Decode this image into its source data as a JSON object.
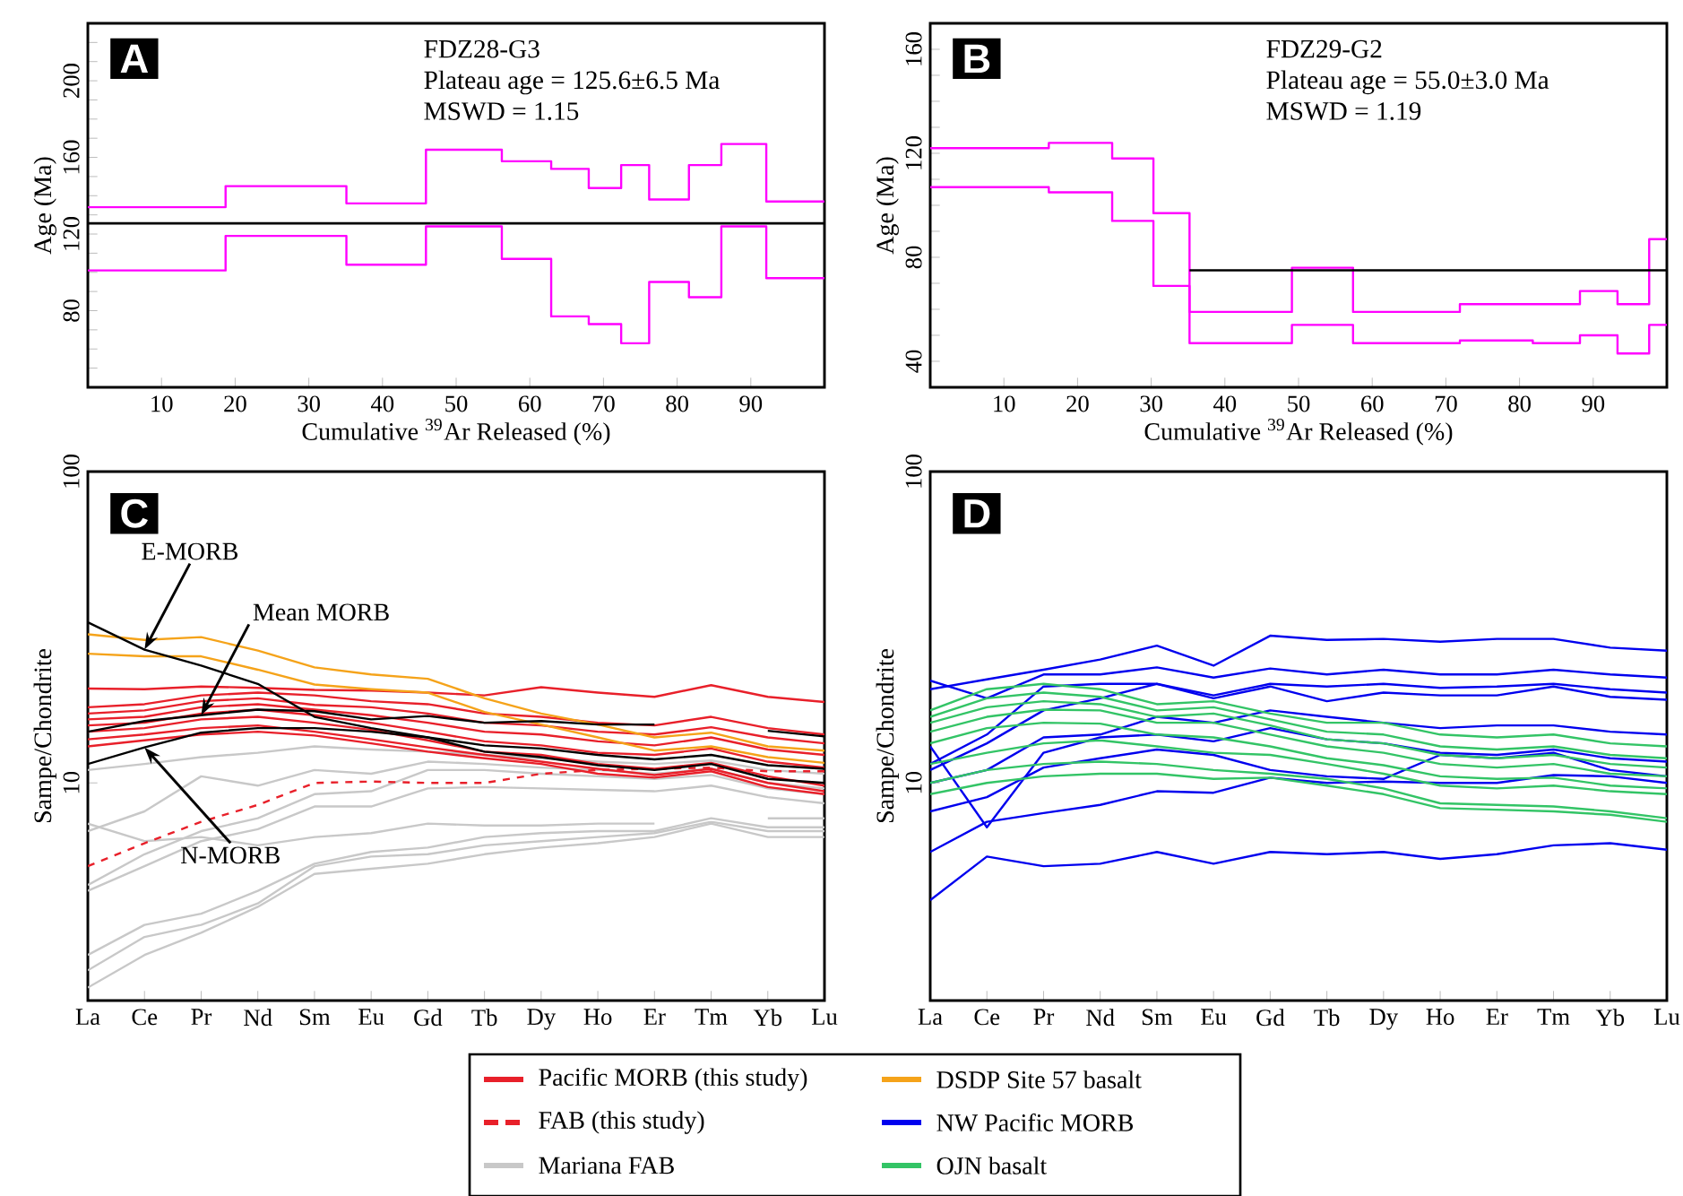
{
  "chart_data": [
    {
      "type": "step",
      "title": "A",
      "xlabel": "Cumulative $^{39}$Ar Released (%)",
      "ylabel": "Age (Ma)",
      "xlim": [
        0,
        100
      ],
      "xticks": [
        10,
        20,
        30,
        40,
        50,
        60,
        70,
        80,
        90
      ],
      "ylim": [
        40,
        230
      ],
      "yticks": [
        {
          "value": 50,
          "label": null
        },
        {
          "value": 60,
          "label": null
        },
        {
          "value": 70,
          "label": null
        },
        80,
        {
          "value": 90,
          "label": null
        },
        {
          "value": 100,
          "label": null
        },
        {
          "value": 110,
          "label": null
        },
        120,
        {
          "value": 130,
          "label": null
        },
        {
          "value": 140,
          "label": null
        },
        {
          "value": 150,
          "label": null
        },
        160,
        {
          "value": 170,
          "label": null
        },
        {
          "value": 180,
          "label": null
        },
        {
          "value": 190,
          "label": null
        },
        200,
        {
          "value": 210,
          "label": null
        },
        {
          "value": 220,
          "label": null
        }
      ],
      "annotations": [
        "FDZ28-G3",
        "Plateau age = 125.6±6.5 Ma",
        "MSWD = 1.15"
      ],
      "ref_lines": [
        {
          "axis": "y",
          "value": 125.6,
          "color": "#000000"
        }
      ],
      "series": [
        {
          "color": "#ff00ff",
          "x": [
            0,
            18.7,
            35.1,
            45.9,
            56.2,
            62.9,
            68.0,
            72.4,
            76.2,
            81.6,
            86.0,
            92.1,
            100
          ],
          "values": [
            134,
            145,
            136,
            164,
            158,
            154,
            144,
            156,
            138,
            156,
            167,
            137,
            137
          ]
        },
        {
          "color": "#ff00ff",
          "x": [
            0,
            18.7,
            35.1,
            45.9,
            56.2,
            62.9,
            68.0,
            72.4,
            76.2,
            81.6,
            86.0,
            92.1,
            100
          ],
          "values": [
            101,
            119,
            104,
            124,
            107,
            77,
            73,
            63,
            95,
            87,
            124,
            97,
            97
          ]
        }
      ]
    },
    {
      "type": "step",
      "title": "B",
      "xlabel": "Cumulative $^{39}$Ar Released (%)",
      "ylabel": "Age (Ma)",
      "xlim": [
        0,
        100
      ],
      "xticks": [
        10,
        20,
        30,
        40,
        50,
        60,
        70,
        80,
        90
      ],
      "ylim": [
        30,
        170
      ],
      "yticks": [
        40,
        {
          "value": 50,
          "label": null
        },
        {
          "value": 60,
          "label": null
        },
        {
          "value": 70,
          "label": null
        },
        80,
        {
          "value": 90,
          "label": null
        },
        {
          "value": 100,
          "label": null
        },
        {
          "value": 110,
          "label": null
        },
        120,
        {
          "value": 130,
          "label": null
        },
        {
          "value": 140,
          "label": null
        },
        {
          "value": 150,
          "label": null
        },
        160
      ],
      "annotations": [
        "FDZ29-G2",
        "Plateau age = 55.0±3.0 Ma",
        "MSWD = 1.19"
      ],
      "series": [
        {
          "color": "#ff00ff",
          "x": [
            0,
            16.1,
            24.7,
            30.3,
            35.2,
            49.1,
            57.4,
            71.9,
            81.8,
            88.2,
            93.3,
            97.6,
            100
          ],
          "values": [
            122,
            124,
            118,
            97,
            59,
            76,
            59,
            62,
            62,
            67,
            62,
            87,
            87
          ]
        },
        {
          "color": "#ff00ff",
          "x": [
            0,
            16.1,
            24.7,
            30.3,
            35.2,
            49.1,
            57.4,
            71.9,
            81.8,
            88.2,
            93.3,
            97.6,
            100
          ],
          "values": [
            107,
            105,
            94,
            69,
            47,
            54,
            47,
            48,
            47,
            50,
            43,
            54,
            54
          ]
        },
        {
          "type": "line",
          "color": "#000000",
          "x": [
            35.2,
            100
          ],
          "values": [
            75,
            75
          ]
        }
      ]
    },
    {
      "type": "line",
      "title": "C",
      "ylabel": "Sampe/Chondrite",
      "log": "y",
      "ylim": [
        2,
        100
      ],
      "yticks": [
        10,
        100
      ],
      "legend": "bottom",
      "categories": [
        "La",
        "Ce",
        "Pr",
        "Nd",
        "Sm",
        "Eu",
        "Gd",
        "Tb",
        "Dy",
        "Ho",
        "Er",
        "Tm",
        "Yb",
        "Lu"
      ],
      "annotations": [
        {
          "text": "E-MORB",
          "x": "Ce",
          "y": 26.8
        },
        {
          "text": "Mean MORB",
          "x": "Pr",
          "y": 16.5
        },
        {
          "text": "N-MORB",
          "x": "Ce",
          "y": 13.0
        }
      ],
      "series": [
        {
          "color": "#c8c8c8",
          "values": [
            11.0,
            11.5,
            12.1,
            12.5,
            13.1,
            12.8,
            12.6,
            12.3,
            12.0,
            11.7,
            11.5,
            11.8,
            11.0,
            10.7
          ]
        },
        {
          "color": "#c8c8c8",
          "values": [
            7.0,
            8.1,
            10.5,
            9.8,
            11.0,
            10.7,
            11.7,
            11.5,
            11.2,
            11.0,
            10.7,
            11.1,
            10.0,
            9.6
          ]
        },
        {
          "color": "#c8c8c8",
          "values": [
            4.7,
            5.9,
            7.0,
            7.7,
            9.2,
            9.4,
            11.0,
            11.0,
            10.7,
            10.5,
            10.3,
            10.6,
            9.6,
            9.2
          ]
        },
        {
          "color": "#c8c8c8",
          "values": [
            4.5,
            5.4,
            6.5,
            7.1,
            8.4,
            8.4,
            9.6,
            9.7,
            9.6,
            9.5,
            9.4,
            9.8,
            9.0,
            8.6
          ]
        },
        {
          "color": "#c8c8c8",
          "values": [
            7.4,
            6.5,
            6.7,
            6.3,
            6.7,
            6.9,
            7.4,
            7.3,
            7.3,
            7.4,
            7.4,
            null,
            7.7,
            7.7
          ]
        },
        {
          "color": "#c8c8c8",
          "values": [
            2.8,
            3.5,
            3.8,
            4.5,
            5.5,
            6.0,
            6.2,
            6.7,
            6.9,
            7.0,
            7.0,
            7.7,
            7.2,
            7.2
          ]
        },
        {
          "color": "#c8c8c8",
          "values": [
            2.5,
            3.2,
            3.5,
            4.1,
            5.4,
            5.8,
            5.9,
            6.3,
            6.5,
            6.7,
            6.9,
            7.5,
            7.0,
            7.0
          ]
        },
        {
          "name": "Pacific MORB (this study)",
          "color": "#e8202a",
          "values": [
            20.1,
            20.0,
            20.4,
            20.2,
            19.9,
            19.8,
            19.5,
            19.1,
            20.3,
            19.5,
            18.9,
            20.6,
            18.9,
            18.2
          ]
        },
        {
          "color": "#e8202a",
          "values": [
            17.5,
            17.9,
            19.1,
            19.5,
            19.1,
            18.3,
            17.9,
            16.7,
            16.3,
            15.6,
            15.3,
            16.3,
            15.0,
            14.3
          ]
        },
        {
          "color": "#e8202a",
          "values": [
            16.7,
            17.1,
            18.3,
            18.7,
            17.8,
            17.5,
            16.7,
            15.6,
            15.3,
            14.6,
            14.3,
            15.1,
            14.0,
            13.4
          ]
        },
        {
          "color": "#e8202a",
          "values": [
            16.0,
            16.3,
            17.5,
            17.9,
            17.2,
            16.5,
            15.6,
            14.6,
            14.3,
            13.6,
            13.2,
            14.0,
            12.8,
            12.3
          ]
        },
        {
          "color": "#e8202a",
          "values": [
            15.3,
            15.6,
            16.7,
            17.2,
            16.5,
            15.6,
            14.6,
            13.6,
            13.2,
            12.5,
            12.3,
            12.9,
            11.7,
            11.2
          ]
        },
        {
          "color": "#e8202a",
          "values": [
            14.6,
            15.0,
            16.0,
            16.3,
            15.6,
            14.8,
            13.7,
            12.6,
            12.3,
            11.5,
            11.1,
            11.6,
            10.5,
            9.8
          ]
        },
        {
          "color": "#e8202a",
          "values": [
            13.8,
            14.3,
            15.0,
            15.3,
            14.6,
            13.8,
            13.0,
            12.3,
            11.7,
            11.1,
            10.6,
            11.1,
            10.0,
            9.4
          ]
        },
        {
          "color": "#e8202a",
          "values": [
            13.1,
            13.7,
            14.3,
            14.6,
            14.2,
            13.4,
            12.6,
            12.0,
            11.5,
            10.7,
            10.4,
            10.9,
            9.7,
            9.2
          ]
        },
        {
          "name": "FAB (this study)",
          "color": "#e8202a",
          "line_style": "dashed",
          "values": [
            5.4,
            6.4,
            7.5,
            8.5,
            10.0,
            10.1,
            10.0,
            10.0,
            10.7,
            11.0,
            11.1,
            11.2,
            10.9,
            10.9
          ]
        },
        {
          "name": "Mariana FAB",
          "color": "#c8c8c8",
          "values": [
            2.2,
            2.8,
            3.3,
            4.0,
            5.1,
            5.3,
            5.5,
            5.9,
            6.2,
            6.4,
            6.7,
            7.4,
            6.7,
            6.7
          ]
        },
        {
          "name": "DSDP Site 57 basalt",
          "color": "#f5a31a",
          "values": [
            30.0,
            28.8,
            29.4,
            26.6,
            23.5,
            22.3,
            21.6,
            18.7,
            16.7,
            15.4,
            14.0,
            14.5,
            13.1,
            12.7
          ]
        },
        {
          "color": "#f5a31a",
          "values": [
            26.0,
            25.5,
            25.5,
            23.1,
            20.7,
            20.0,
            19.5,
            16.9,
            15.4,
            14.0,
            12.7,
            13.1,
            12.1,
            11.6
          ]
        },
        {
          "color": "#000000",
          "values": [
            32.8,
            26.8,
            23.8,
            20.8,
            16.3,
            15.0,
            14.0,
            12.6,
            12.1,
            11.4,
            11.0,
            11.5,
            10.3,
            10.0
          ]
        },
        {
          "color": "#000000",
          "values": [
            14.6,
            15.8,
            16.5,
            17.2,
            17.0,
            16.0,
            16.4,
            15.6,
            15.8,
            15.4,
            15.4,
            null,
            14.7,
            14.1
          ]
        },
        {
          "color": "#000000",
          "values": [
            11.5,
            13.0,
            14.5,
            15.0,
            15.0,
            14.6,
            14.0,
            13.2,
            12.9,
            12.3,
            11.9,
            12.3,
            11.4,
            11.1
          ]
        }
      ]
    },
    {
      "type": "line",
      "title": "D",
      "ylabel": "Sampe/Chondrite",
      "log": "y",
      "ylim": [
        2,
        100
      ],
      "yticks": [
        10,
        100
      ],
      "legend": "bottom",
      "categories": [
        "La",
        "Ce",
        "Pr",
        "Nd",
        "Sm",
        "Eu",
        "Gd",
        "Tb",
        "Dy",
        "Ho",
        "Er",
        "Tm",
        "Yb",
        "Lu"
      ],
      "series": [
        {
          "name": "NW Pacific MORB",
          "color": "#0000ee",
          "values": [
            20.0,
            21.5,
            23.1,
            24.9,
            27.6,
            23.8,
            29.7,
            28.8,
            29.0,
            28.4,
            29.0,
            29.0,
            27.2,
            26.6
          ]
        },
        {
          "color": "#0000ee",
          "values": [
            21.3,
            18.7,
            22.3,
            22.3,
            23.5,
            21.8,
            23.3,
            22.3,
            23.1,
            22.3,
            22.3,
            23.1,
            22.3,
            21.8
          ]
        },
        {
          "color": "#0000ee",
          "values": [
            11.5,
            14.3,
            20.4,
            20.8,
            20.8,
            19.1,
            20.8,
            20.4,
            20.8,
            20.2,
            20.4,
            20.8,
            20.0,
            19.5
          ]
        },
        {
          "color": "#0000ee",
          "values": [
            11.0,
            13.4,
            17.1,
            18.7,
            20.8,
            18.7,
            20.4,
            18.3,
            19.5,
            19.1,
            19.1,
            20.4,
            18.9,
            18.5
          ]
        },
        {
          "color": "#0000ee",
          "values": [
            10.0,
            11.0,
            14.0,
            14.3,
            16.3,
            15.6,
            17.1,
            16.3,
            15.6,
            15.0,
            15.3,
            15.3,
            14.6,
            14.3
          ]
        },
        {
          "color": "#0000ee",
          "values": [
            13.1,
            7.2,
            12.5,
            14.0,
            14.3,
            13.6,
            15.0,
            13.8,
            13.4,
            12.5,
            12.3,
            12.8,
            12.0,
            11.7
          ]
        },
        {
          "color": "#0000ee",
          "values": [
            8.1,
            9.0,
            11.2,
            12.0,
            12.8,
            12.3,
            11.0,
            10.5,
            10.3,
            12.3,
            12.0,
            12.5,
            11.0,
            10.5
          ]
        },
        {
          "color": "#0000ee",
          "values": [
            6.0,
            7.5,
            8.0,
            8.5,
            9.4,
            9.3,
            10.4,
            10.0,
            10.1,
            10.0,
            10.0,
            10.6,
            10.5,
            10.0
          ]
        },
        {
          "color": "#0000ee",
          "values": [
            4.2,
            5.8,
            5.4,
            5.5,
            6.0,
            5.5,
            6.0,
            5.9,
            6.0,
            5.7,
            5.9,
            6.3,
            6.4,
            6.1
          ]
        },
        {
          "name": "OJN basalt",
          "color": "#33c466",
          "values": [
            17.1,
            20.0,
            20.8,
            20.0,
            17.9,
            18.3,
            16.7,
            15.6,
            15.6,
            14.3,
            14.0,
            14.3,
            13.4,
            13.1
          ]
        },
        {
          "color": "#33c466",
          "values": [
            16.3,
            18.7,
            19.5,
            18.9,
            17.1,
            17.5,
            16.0,
            14.6,
            14.3,
            13.1,
            12.8,
            13.1,
            12.3,
            12.0
          ]
        },
        {
          "color": "#33c466",
          "values": [
            15.6,
            17.5,
            18.3,
            17.9,
            16.3,
            16.7,
            15.3,
            13.8,
            13.4,
            12.3,
            12.0,
            12.3,
            11.5,
            11.2
          ]
        },
        {
          "color": "#33c466",
          "values": [
            14.6,
            16.3,
            17.2,
            17.1,
            15.6,
            15.6,
            14.3,
            13.1,
            12.5,
            11.5,
            11.2,
            11.5,
            10.7,
            10.5
          ]
        },
        {
          "color": "#33c466",
          "values": [
            13.4,
            15.0,
            15.6,
            15.5,
            14.3,
            14.0,
            13.1,
            12.0,
            11.4,
            10.5,
            10.3,
            10.4,
            9.8,
            9.6
          ]
        },
        {
          "color": "#33c466",
          "values": [
            11.5,
            12.5,
            13.4,
            13.7,
            13.1,
            12.5,
            12.3,
            11.5,
            10.7,
            9.8,
            9.6,
            9.8,
            9.4,
            9.2
          ]
        },
        {
          "color": "#33c466",
          "values": [
            10.0,
            11.0,
            11.5,
            11.7,
            11.5,
            11.0,
            10.7,
            10.3,
            9.6,
            8.6,
            8.5,
            8.4,
            8.1,
            7.7
          ]
        },
        {
          "color": "#33c466",
          "values": [
            9.2,
            10.0,
            10.5,
            10.7,
            10.7,
            10.3,
            10.4,
            9.8,
            9.2,
            8.3,
            8.2,
            8.1,
            7.9,
            7.5
          ]
        }
      ]
    }
  ]
}
